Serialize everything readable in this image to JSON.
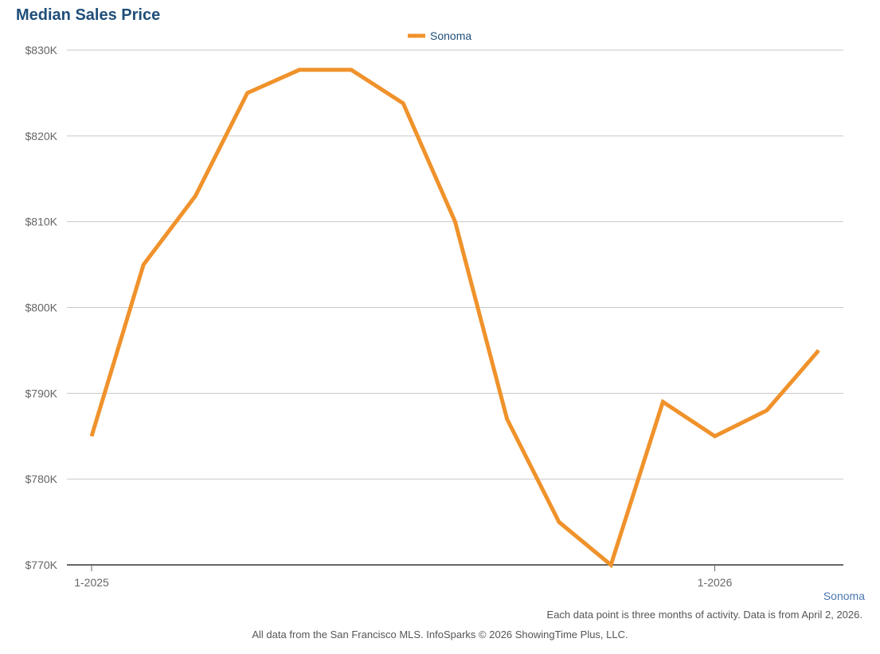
{
  "chart_data": {
    "type": "line",
    "title": "Median Sales Price",
    "x": [
      "1-2025",
      "2-2025",
      "3-2025",
      "4-2025",
      "5-2025",
      "6-2025",
      "7-2025",
      "8-2025",
      "9-2025",
      "10-2025",
      "11-2025",
      "12-2025",
      "1-2026",
      "2-2026",
      "3-2026"
    ],
    "x_tick_labels": [
      "1-2025",
      "1-2026"
    ],
    "series": [
      {
        "name": "Sonoma",
        "color": "#f0922b",
        "values": [
          785000,
          805000,
          813000,
          825000,
          827700,
          827700,
          823800,
          810000,
          787000,
          775000,
          770000,
          789000,
          785000,
          788000,
          795000
        ]
      }
    ],
    "ylim": [
      770000,
      830000
    ],
    "y_ticks": [
      770000,
      780000,
      790000,
      800000,
      810000,
      820000,
      830000
    ],
    "y_tick_labels": [
      "$770K",
      "$780K",
      "$790K",
      "$800K",
      "$810K",
      "$820K",
      "$830K"
    ],
    "grid": true,
    "legend_placement": "top-center"
  },
  "region_label": "Sonoma",
  "note_activity": "Each data point is three months of activity. Data is from April 2, 2026.",
  "note_source": "All data from the San Francisco MLS. InfoSparks © 2026 ShowingTime Plus, LLC."
}
